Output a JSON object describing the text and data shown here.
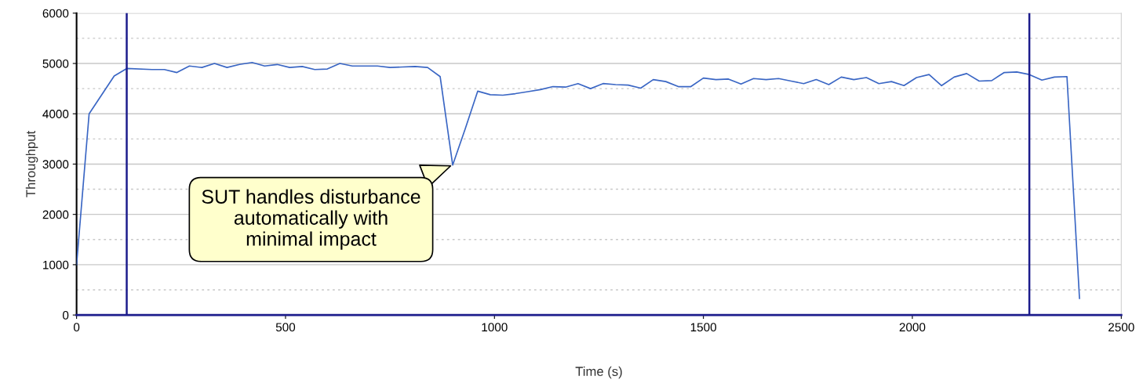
{
  "chart_data": {
    "type": "line",
    "xlabel": "Time (s)",
    "ylabel": "Throughput",
    "xlim": [
      0,
      2500
    ],
    "xticks": [
      0,
      500,
      1000,
      1500,
      2000,
      2500
    ],
    "ylim": [
      0,
      6000
    ],
    "yticks": [
      0,
      {
        "value": 500,
        "label": null
      },
      1000,
      {
        "value": 1500,
        "label": null
      },
      2000,
      {
        "value": 2500,
        "label": null
      },
      3000,
      {
        "value": 3500,
        "label": null
      },
      4000,
      {
        "value": 4500,
        "label": null
      },
      5000,
      {
        "value": 5500,
        "label": null
      },
      6000
    ],
    "grid": "y",
    "marker": "none",
    "line_style": "solid",
    "x": [
      0,
      30,
      90,
      120,
      180,
      210,
      240,
      270,
      300,
      330,
      360,
      390,
      420,
      450,
      480,
      510,
      540,
      570,
      600,
      630,
      660,
      690,
      720,
      750,
      780,
      810,
      840,
      870,
      900,
      930,
      960,
      990,
      1020,
      1050,
      1080,
      1110,
      1140,
      1170,
      1200,
      1230,
      1260,
      1290,
      1320,
      1350,
      1380,
      1410,
      1440,
      1470,
      1500,
      1530,
      1560,
      1590,
      1620,
      1650,
      1680,
      1710,
      1740,
      1770,
      1800,
      1830,
      1860,
      1890,
      1920,
      1950,
      1980,
      2010,
      2040,
      2070,
      2100,
      2130,
      2160,
      2190,
      2220,
      2250,
      2280,
      2310,
      2340,
      2370,
      2400
    ],
    "series": [
      {
        "color": "#3a66c4",
        "values": [
          1000,
          4000,
          4750,
          4900,
          4880,
          4880,
          4820,
          4950,
          4920,
          5000,
          4920,
          4980,
          5020,
          4950,
          4980,
          4920,
          4940,
          4880,
          4890,
          5000,
          4950,
          4950,
          4950,
          4920,
          4930,
          4940,
          4920,
          4740,
          2980,
          3700,
          4450,
          4380,
          4370,
          4400,
          4440,
          4480,
          4540,
          4530,
          4600,
          4500,
          4600,
          4580,
          4570,
          4510,
          4680,
          4640,
          4540,
          4540,
          4710,
          4680,
          4690,
          4590,
          4700,
          4680,
          4700,
          4650,
          4600,
          4680,
          4580,
          4730,
          4680,
          4720,
          4600,
          4640,
          4560,
          4720,
          4780,
          4560,
          4730,
          4800,
          4650,
          4660,
          4820,
          4830,
          4780,
          4670,
          4730,
          4740,
          330
        ]
      }
    ],
    "ref_lines": [
      {
        "axis": "x",
        "value": 120,
        "label": null,
        "color": "#1c1c8c"
      },
      {
        "axis": "x",
        "value": 2280,
        "label": null,
        "color": "#1c1c8c"
      }
    ],
    "annotations": [
      {
        "text": "SUT handles disturbance\nautomatically with\nminimal impact",
        "x": 900,
        "y": 2980
      }
    ]
  }
}
